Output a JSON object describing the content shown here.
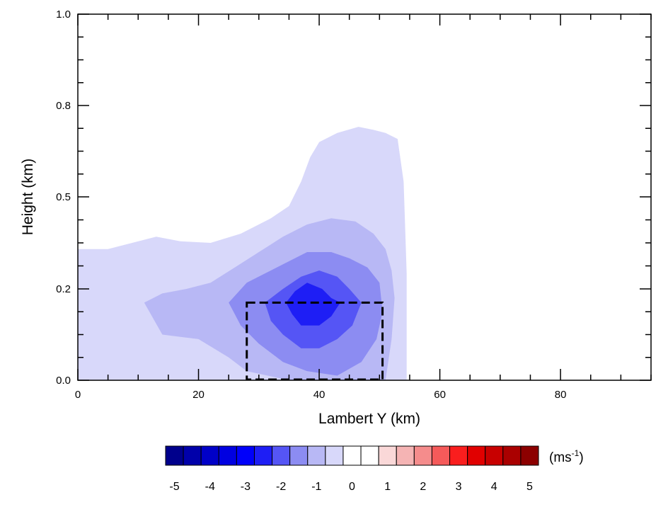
{
  "chart_data": {
    "type": "contour",
    "title": "",
    "xlabel": "Lambert Y (km)",
    "ylabel": "Height (km)",
    "xlim": [
      0,
      95
    ],
    "ylim": [
      0,
      1.0
    ],
    "x_ticks": [
      0,
      20,
      40,
      60,
      80
    ],
    "x_tick_labels": [
      "0",
      "20",
      "40",
      "60",
      "80"
    ],
    "y_ticks": [
      0.0,
      0.2,
      0.5,
      0.8,
      1.0
    ],
    "y_tick_labels": [
      "0.0",
      "0.2",
      "0.5",
      "0.8",
      "1.0"
    ],
    "contour_levels": [
      {
        "level": -0.5,
        "color": "#d8d8fa",
        "outline": [
          [
            0,
            0
          ],
          [
            0,
            0.33
          ],
          [
            5,
            0.33
          ],
          [
            9,
            0.35
          ],
          [
            13,
            0.37
          ],
          [
            17,
            0.355
          ],
          [
            22,
            0.35
          ],
          [
            27,
            0.38
          ],
          [
            32,
            0.43
          ],
          [
            35,
            0.47
          ],
          [
            37,
            0.55
          ],
          [
            38.5,
            0.63
          ],
          [
            40,
            0.68
          ],
          [
            43,
            0.71
          ],
          [
            46.5,
            0.73
          ],
          [
            49,
            0.72
          ],
          [
            51,
            0.71
          ],
          [
            53,
            0.69
          ],
          [
            54,
            0.55
          ],
          [
            54.5,
            0.25
          ],
          [
            54.5,
            0
          ]
        ]
      },
      {
        "level": -1.5,
        "color": "#b8b8f5",
        "outline": [
          [
            11,
            0.17
          ],
          [
            14,
            0.19
          ],
          [
            18,
            0.2
          ],
          [
            22,
            0.22
          ],
          [
            26,
            0.27
          ],
          [
            30,
            0.32
          ],
          [
            34,
            0.37
          ],
          [
            38,
            0.41
          ],
          [
            42,
            0.43
          ],
          [
            46,
            0.42
          ],
          [
            49,
            0.38
          ],
          [
            51,
            0.33
          ],
          [
            52,
            0.26
          ],
          [
            52.5,
            0.18
          ],
          [
            52,
            0.09
          ],
          [
            51,
            0
          ],
          [
            35,
            0
          ],
          [
            28,
            0.02
          ],
          [
            25,
            0.05
          ],
          [
            20,
            0.09
          ],
          [
            14,
            0.1
          ]
        ]
      },
      {
        "level": -2.5,
        "color": "#8c8cf2",
        "outline": [
          [
            25,
            0.17
          ],
          [
            28,
            0.22
          ],
          [
            31,
            0.25
          ],
          [
            34,
            0.28
          ],
          [
            38,
            0.32
          ],
          [
            42,
            0.32
          ],
          [
            45,
            0.3
          ],
          [
            48,
            0.27
          ],
          [
            50,
            0.22
          ],
          [
            50.5,
            0.15
          ],
          [
            49.5,
            0.09
          ],
          [
            47,
            0.04
          ],
          [
            43,
            0.01
          ],
          [
            38,
            0.02
          ],
          [
            34,
            0.04
          ],
          [
            30,
            0.08
          ],
          [
            27,
            0.12
          ]
        ]
      },
      {
        "level": -3.5,
        "color": "#5555f5",
        "outline": [
          [
            31,
            0.17
          ],
          [
            34,
            0.2
          ],
          [
            37,
            0.24
          ],
          [
            40,
            0.26
          ],
          [
            43,
            0.24
          ],
          [
            45,
            0.2
          ],
          [
            47,
            0.17
          ],
          [
            45.5,
            0.12
          ],
          [
            43,
            0.09
          ],
          [
            40,
            0.07
          ],
          [
            37,
            0.07
          ],
          [
            34,
            0.1
          ],
          [
            32,
            0.13
          ]
        ]
      },
      {
        "level": -4.5,
        "color": "#1e1ef5",
        "outline": [
          [
            34.5,
            0.17
          ],
          [
            36,
            0.195
          ],
          [
            38,
            0.22
          ],
          [
            40.5,
            0.2
          ],
          [
            42,
            0.18
          ],
          [
            43.5,
            0.17
          ],
          [
            42,
            0.14
          ],
          [
            40,
            0.12
          ],
          [
            37,
            0.12
          ],
          [
            35.5,
            0.145
          ]
        ]
      }
    ],
    "highlight_box": {
      "x": [
        28,
        50.5
      ],
      "y": [
        0,
        0.17
      ],
      "style": "dashed"
    },
    "colorbar": {
      "orientation": "horizontal",
      "tick_labels": [
        "-5",
        "-4",
        "-3",
        "-2",
        "-1",
        "0",
        "1",
        "2",
        "3",
        "4",
        "5"
      ],
      "unit_base": "(ms",
      "unit_exp": "-1",
      "unit_close": ")",
      "colors": [
        "#00008c",
        "#0000aa",
        "#0000c8",
        "#0000e1",
        "#0000fa",
        "#1e1ef5",
        "#5555f5",
        "#8c8cf2",
        "#b8b8f5",
        "#d8d8fa",
        "#ffffff",
        "#ffffff",
        "#fad8d8",
        "#f5b4b4",
        "#f58c8c",
        "#f55a5a",
        "#fa1e1e",
        "#e10000",
        "#c80000",
        "#aa0000",
        "#8c0000"
      ]
    }
  }
}
